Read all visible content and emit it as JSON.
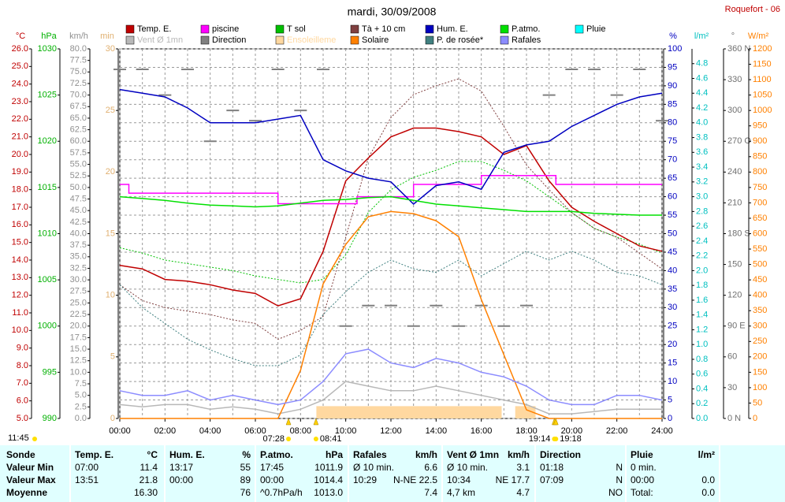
{
  "chart_data": {
    "type": "line",
    "title": "mardi, 30/09/2008",
    "station": "Roquefort - 06",
    "xlim": [
      0,
      24
    ],
    "xticks": [
      {
        "value": 0,
        "label": "00:00"
      },
      {
        "value": 2,
        "label": "02:00"
      },
      {
        "value": 4,
        "label": "04:00"
      },
      {
        "value": 6,
        "label": "06:00"
      },
      {
        "value": 8,
        "label": "08:00"
      },
      {
        "value": 10,
        "label": "10:00"
      },
      {
        "value": 12,
        "label": "12:00"
      },
      {
        "value": 14,
        "label": "14:00"
      },
      {
        "value": 16,
        "label": "16:00"
      },
      {
        "value": 18,
        "label": "18:00"
      },
      {
        "value": 20,
        "label": "20:00"
      },
      {
        "value": 22,
        "label": "22:00"
      },
      {
        "value": 24,
        "label": "24:00"
      }
    ],
    "xgrid": [
      0,
      1,
      2,
      3,
      4,
      5,
      6,
      7,
      8,
      9,
      10,
      11,
      12,
      13,
      14,
      15,
      16,
      17,
      18,
      19,
      20,
      21,
      22,
      23,
      24
    ],
    "x": [
      0,
      1,
      2,
      3,
      4,
      5,
      6,
      7,
      8,
      9,
      10,
      11,
      12,
      13,
      14,
      15,
      16,
      17,
      18,
      19,
      20,
      21,
      22,
      23,
      24
    ],
    "axes": [
      {
        "unit": "°C",
        "side": "left",
        "color": "#c00000",
        "lim": [
          5,
          26
        ],
        "ticks": [
          {
            "value": 5,
            "label": "5.0"
          },
          {
            "value": 6,
            "label": "6.0"
          },
          {
            "value": 7,
            "label": "7.0"
          },
          {
            "value": 8,
            "label": "8.0"
          },
          {
            "value": 9,
            "label": "9.0"
          },
          {
            "value": 10,
            "label": "10.0"
          },
          {
            "value": 11,
            "label": "11.0"
          },
          {
            "value": 12,
            "label": "12.0"
          },
          {
            "value": 13,
            "label": "13.0"
          },
          {
            "value": 14,
            "label": "14.0"
          },
          {
            "value": 15,
            "label": "15.0"
          },
          {
            "value": 16,
            "label": "16.0"
          },
          {
            "value": 17,
            "label": "17.0"
          },
          {
            "value": 18,
            "label": "18.0"
          },
          {
            "value": 19,
            "label": "19.0"
          },
          {
            "value": 20,
            "label": "20.0"
          },
          {
            "value": 21,
            "label": "21.0"
          },
          {
            "value": 22,
            "label": "22.0"
          },
          {
            "value": 23,
            "label": "23.0"
          },
          {
            "value": 24,
            "label": "24.0"
          },
          {
            "value": 25,
            "label": "25.0"
          },
          {
            "value": 26,
            "label": "26.0"
          }
        ]
      },
      {
        "unit": "hPa",
        "side": "left",
        "color": "#00b000",
        "lim": [
          990,
          1030
        ],
        "ticks": [
          990,
          995,
          1000,
          1005,
          1010,
          1015,
          1020,
          1025,
          1030
        ]
      },
      {
        "unit": "km/h",
        "side": "left",
        "color": "#909090",
        "lim": [
          0,
          80
        ],
        "ticks": [
          {
            "value": 0,
            "label": "0.0"
          },
          {
            "value": 2.5,
            "label": "2.5"
          },
          {
            "value": 5,
            "label": "5.0"
          },
          {
            "value": 7.5,
            "label": "7.5"
          },
          {
            "value": 10,
            "label": "10.0"
          },
          {
            "value": 12.5,
            "label": "12.5"
          },
          {
            "value": 15,
            "label": "15.0"
          },
          {
            "value": 17.5,
            "label": "17.5"
          },
          {
            "value": 20,
            "label": "20.0"
          },
          {
            "value": 22.5,
            "label": "22.5"
          },
          {
            "value": 25,
            "label": "25.0"
          },
          {
            "value": 27.5,
            "label": "27.5"
          },
          {
            "value": 30,
            "label": "30.0"
          },
          {
            "value": 32.5,
            "label": "32.5"
          },
          {
            "value": 35,
            "label": "35.0"
          },
          {
            "value": 37.5,
            "label": "37.5"
          },
          {
            "value": 40,
            "label": "40.0"
          },
          {
            "value": 42.5,
            "label": "42.5"
          },
          {
            "value": 45,
            "label": "45.0"
          },
          {
            "value": 47.5,
            "label": "47.5"
          },
          {
            "value": 50,
            "label": "50.0"
          },
          {
            "value": 52.5,
            "label": "52.5"
          },
          {
            "value": 55,
            "label": "55.0"
          },
          {
            "value": 57.5,
            "label": "57.5"
          },
          {
            "value": 60,
            "label": "60.0"
          },
          {
            "value": 62.5,
            "label": "62.5"
          },
          {
            "value": 65,
            "label": "65.0"
          },
          {
            "value": 67.5,
            "label": "67.5"
          },
          {
            "value": 70,
            "label": "70.0"
          },
          {
            "value": 72.5,
            "label": "72.5"
          },
          {
            "value": 75,
            "label": "75.0"
          },
          {
            "value": 77.5,
            "label": "77.5"
          },
          {
            "value": 80,
            "label": "80.0"
          }
        ]
      },
      {
        "unit": "min",
        "side": "left",
        "color": "#e0b070",
        "lim": [
          0,
          30
        ],
        "ticks": [
          0,
          5,
          10,
          15,
          20,
          25,
          30
        ]
      },
      {
        "unit": "%",
        "side": "right",
        "color": "#0000c0",
        "lim": [
          0,
          100
        ],
        "grid": true,
        "ticks": [
          0,
          5,
          10,
          15,
          20,
          25,
          30,
          35,
          40,
          45,
          50,
          55,
          60,
          65,
          70,
          75,
          80,
          85,
          90,
          95,
          100
        ]
      },
      {
        "unit": "l/m²",
        "side": "right",
        "color": "#00c0c0",
        "lim": [
          0,
          5
        ],
        "ticks": [
          {
            "value": 0,
            "label": "0.0"
          },
          {
            "value": 0.2,
            "label": "0.2"
          },
          {
            "value": 0.4,
            "label": "0.4"
          },
          {
            "value": 0.6,
            "label": "0.6"
          },
          {
            "value": 0.8,
            "label": "0.8"
          },
          {
            "value": 1,
            "label": "1.0"
          },
          {
            "value": 1.2,
            "label": "1.2"
          },
          {
            "value": 1.4,
            "label": "1.4"
          },
          {
            "value": 1.6,
            "label": "1.6"
          },
          {
            "value": 1.8,
            "label": "1.8"
          },
          {
            "value": 2,
            "label": "2.0"
          },
          {
            "value": 2.2,
            "label": "2.2"
          },
          {
            "value": 2.4,
            "label": "2.4"
          },
          {
            "value": 2.6,
            "label": "2.6"
          },
          {
            "value": 2.8,
            "label": "2.8"
          },
          {
            "value": 3,
            "label": "3.0"
          },
          {
            "value": 3.2,
            "label": "3.2"
          },
          {
            "value": 3.4,
            "label": "3.4"
          },
          {
            "value": 3.6,
            "label": "3.6"
          },
          {
            "value": 3.8,
            "label": "3.8"
          },
          {
            "value": 4,
            "label": "4.0"
          },
          {
            "value": 4.2,
            "label": "4.2"
          },
          {
            "value": 4.4,
            "label": "4.4"
          },
          {
            "value": 4.6,
            "label": "4.6"
          },
          {
            "value": 4.8,
            "label": "4.8"
          }
        ]
      },
      {
        "unit": "°",
        "side": "right",
        "color": "#707070",
        "lim": [
          0,
          360
        ],
        "ticks": [
          {
            "value": 0,
            "label": "0 N"
          },
          30,
          60,
          {
            "value": 90,
            "label": "90 E"
          },
          120,
          150,
          {
            "value": 180,
            "label": "180 S"
          },
          210,
          240,
          {
            "value": 270,
            "label": "270 O"
          },
          300,
          330,
          {
            "value": 360,
            "label": "360 N"
          }
        ]
      },
      {
        "unit": "W/m²",
        "side": "right",
        "color": "#ff8000",
        "lim": [
          0,
          1200
        ],
        "ticks": [
          0,
          50,
          100,
          150,
          200,
          250,
          300,
          350,
          400,
          450,
          500,
          550,
          600,
          650,
          700,
          750,
          800,
          850,
          900,
          950,
          1000,
          1050,
          1100,
          1150,
          1200
        ]
      }
    ],
    "series": [
      {
        "name": "Temp. E.",
        "color": "#c00000",
        "axis": "°C",
        "style": "solid",
        "values": [
          13.7,
          13.5,
          12.9,
          12.8,
          12.6,
          12.3,
          12.1,
          11.4,
          11.8,
          14.5,
          18.5,
          19.8,
          21.0,
          21.5,
          21.5,
          21.3,
          21.0,
          20.0,
          20.5,
          18.5,
          17.0,
          16.2,
          15.5,
          14.8,
          14.5
        ]
      },
      {
        "name": "piscine",
        "color": "#ff00ff",
        "axis": "°C",
        "style": "solid",
        "x": [
          0,
          0.4,
          0.4,
          7,
          7,
          10.5,
          10.5,
          13,
          13,
          16,
          16,
          19.3,
          19.3,
          24
        ],
        "values": [
          18.3,
          18.3,
          17.8,
          17.8,
          17.2,
          17.2,
          17.6,
          17.6,
          18.3,
          18.3,
          18.8,
          18.8,
          18.3,
          18.3
        ]
      },
      {
        "name": "T sol",
        "color": "#00c000",
        "axis": "°C",
        "style": "dotted",
        "values": [
          14.7,
          14.4,
          14.0,
          13.8,
          13.6,
          13.4,
          13.1,
          12.9,
          12.7,
          12.9,
          14.3,
          16.7,
          18.0,
          18.7,
          19.1,
          19.6,
          19.6,
          19.1,
          18.5,
          17.6,
          16.7,
          15.8,
          15.3,
          14.9,
          14.4
        ]
      },
      {
        "name": "Tà + 10 cm",
        "color": "#804040",
        "axis": "°C",
        "style": "dotted",
        "values": [
          12.6,
          11.7,
          11.3,
          11.1,
          10.9,
          10.6,
          10.4,
          9.5,
          10.0,
          10.8,
          15.3,
          19.8,
          22.1,
          23.4,
          23.9,
          24.3,
          23.6,
          21.6,
          19.4,
          18.0,
          16.7,
          15.8,
          15.3,
          14.4,
          13.5
        ]
      },
      {
        "name": "Hum. E.",
        "color": "#0000c0",
        "axis": "%",
        "style": "solid",
        "values": [
          89,
          88,
          87,
          84,
          80,
          80,
          80,
          81,
          82,
          70,
          67,
          65,
          64,
          58,
          63,
          64,
          62,
          72,
          74,
          75,
          79,
          82,
          85,
          87,
          88
        ]
      },
      {
        "name": "P.atmo.",
        "color": "#00e000",
        "axis": "hPa",
        "style": "solid",
        "values": [
          1014.0,
          1013.8,
          1013.6,
          1013.3,
          1013.1,
          1013.0,
          1012.9,
          1013.0,
          1013.3,
          1013.6,
          1013.7,
          1013.9,
          1014.0,
          1013.6,
          1013.2,
          1013.0,
          1012.8,
          1012.6,
          1012.4,
          1012.4,
          1012.4,
          1012.2,
          1012.1,
          1012.0,
          1012.0
        ]
      },
      {
        "name": "Pluie",
        "color": "#00ffff",
        "axis": "l/m²"
      },
      {
        "name": "Vent Ø 1mn",
        "color": "#b8b8b8",
        "axis": "km/h",
        "style": "solid",
        "values": [
          3,
          2.5,
          3,
          3,
          2,
          2.5,
          2,
          1,
          2,
          4,
          8,
          7,
          6,
          6,
          7,
          6,
          5,
          4,
          3,
          1,
          1,
          1.5,
          2,
          2,
          2
        ]
      },
      {
        "name": "Direction",
        "color": "#808080",
        "axis": "°",
        "style": "dash",
        "values": [
          340,
          340,
          315,
          340,
          270,
          300,
          290,
          340,
          300,
          340,
          90,
          110,
          110,
          90,
          110,
          90,
          110,
          90,
          110,
          315,
          340,
          340,
          315,
          340,
          290
        ]
      },
      {
        "name": "Ensoleilleme",
        "color": "#ffd8a0",
        "axis": "min",
        "style": "area",
        "x": [
          8.7,
          8.7,
          16.9,
          16.9,
          17.5,
          17.5,
          18.4,
          18.4
        ],
        "values": [
          0,
          1,
          1,
          0,
          0,
          1,
          1,
          0
        ]
      },
      {
        "name": "Solaire",
        "color": "#ff8000",
        "axis": "W/m²",
        "style": "solid",
        "values": [
          0,
          0,
          0,
          0,
          0,
          0,
          0,
          0,
          156,
          437,
          565,
          655,
          672,
          665,
          642,
          590,
          386,
          207,
          28,
          0,
          0,
          0,
          0,
          0,
          0
        ]
      },
      {
        "name": "P. de rosée*",
        "color": "#408080",
        "axis": "°C",
        "style": "dotted",
        "values": [
          12.6,
          11.3,
          10.4,
          9.5,
          8.9,
          8.4,
          8.0,
          8.0,
          8.6,
          10.9,
          12.2,
          13.3,
          14.0,
          13.5,
          13.3,
          14.0,
          13.1,
          13.8,
          14.5,
          14.0,
          14.5,
          14.0,
          13.3,
          13.1,
          12.6
        ]
      },
      {
        "name": "Rafales",
        "color": "#8c8cff",
        "axis": "km/h",
        "style": "solid",
        "values": [
          6,
          5,
          5,
          6,
          4,
          5,
          4,
          3,
          4,
          8,
          14,
          15,
          12,
          11,
          13,
          12,
          10,
          9,
          7,
          4,
          3,
          3,
          5,
          5,
          4
        ]
      }
    ],
    "sun": {
      "day_length": "11:45",
      "times": [
        "07:28",
        "08:41",
        "19:14",
        "19:18"
      ]
    }
  },
  "table": {
    "rows": [
      [
        "Sonde",
        {
          "l": "Temp. E.",
          "r": "°C"
        },
        {
          "l": "Hum. E.",
          "r": "%"
        },
        {
          "l": "P.atmo.",
          "r": "hPa"
        },
        {
          "l": "Rafales",
          "r": "km/h"
        },
        {
          "l": "Vent Ø 1mn",
          "r": "km/h"
        },
        {
          "l": "Direction"
        },
        {
          "l": "Pluie",
          "r": "l/m²"
        }
      ],
      [
        "Valeur Min",
        {
          "l": "07:00",
          "r": "11.4"
        },
        {
          "l": "13:17",
          "r": "55"
        },
        {
          "l": "17:45",
          "r": "1011.9"
        },
        {
          "l": "Ø 10 min.",
          "r": "6.6"
        },
        {
          "l": "Ø 10 min.",
          "r": "3.1"
        },
        {
          "l": "01:18",
          "r": "N"
        },
        {
          "l": "0 min."
        }
      ],
      [
        "Valeur Max",
        {
          "l": "13:51",
          "r": "21.8"
        },
        {
          "l": "00:00",
          "r": "89"
        },
        {
          "l": "00:00",
          "r": "1014.4"
        },
        {
          "l": "10:29",
          "r": "N-NE 22.5"
        },
        {
          "l": "10:34",
          "r": "NE 17.7"
        },
        {
          "l": "07:09",
          "r": "N"
        },
        {
          "l": "00:00",
          "r": "0.0"
        }
      ],
      [
        "Moyenne",
        {
          "r": "16.30"
        },
        {
          "r": "76"
        },
        {
          "l": "^0.7hPa/h",
          "r": "1013.0"
        },
        {
          "r": "7.4"
        },
        {
          "l": "4,7 km",
          "r": "4.7"
        },
        {
          "r": "NO"
        },
        {
          "l": "Total:",
          "r": "0.0"
        }
      ]
    ]
  }
}
